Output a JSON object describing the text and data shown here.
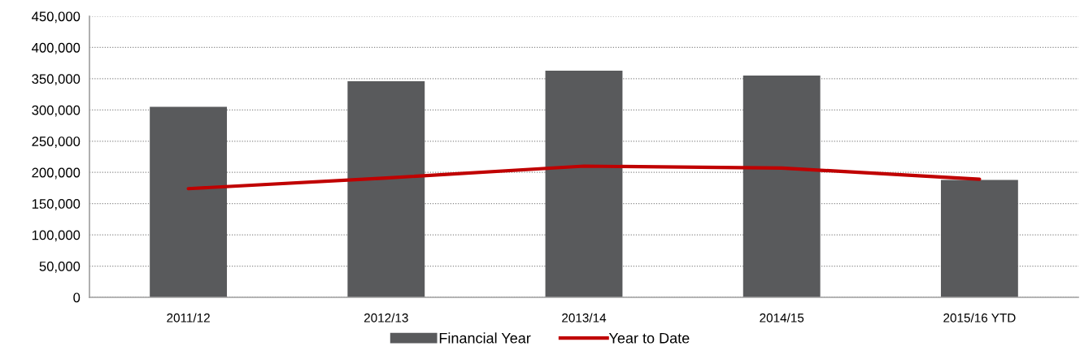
{
  "chart_data": {
    "type": "bar",
    "categories": [
      "2011/12",
      "2012/13",
      "2013/14",
      "2014/15",
      "2015/16 YTD"
    ],
    "series": [
      {
        "name": "Financial Year",
        "color": "#595a5c",
        "values": [
          305000,
          346000,
          363000,
          355000,
          188000
        ]
      },
      {
        "name": "Year to Date",
        "type": "line",
        "color": "#c00000",
        "values": [
          174000,
          191000,
          210000,
          207000,
          189000
        ]
      }
    ],
    "ylim": [
      0,
      450000
    ],
    "yticks": [
      0,
      {
        "value": 50000,
        "label": "50,000"
      },
      {
        "value": 100000,
        "label": "100,000"
      },
      {
        "value": 150000,
        "label": "150,000"
      },
      {
        "value": 200000,
        "label": "200,000"
      },
      {
        "value": 250000,
        "label": "250,000"
      },
      {
        "value": 300000,
        "label": "300,000"
      },
      {
        "value": 350000,
        "label": "350,000"
      },
      {
        "value": 400000,
        "label": "400,000"
      },
      {
        "value": 450000,
        "label": "450,000"
      }
    ],
    "grid": "y",
    "legend": "bottom",
    "marker": "none",
    "line_style": "solid"
  }
}
